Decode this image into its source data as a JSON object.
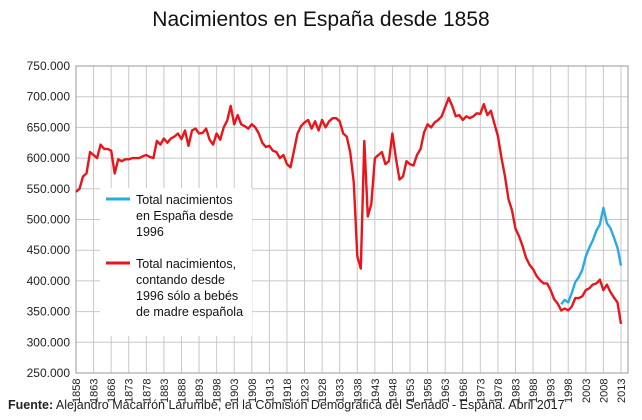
{
  "title": "Nacimientos en España desde 1858",
  "source": {
    "prefix": "Fuente:",
    "text": " Alejandro Macarrón Larumbe, en la Comisión Demográfica del Senado - España. Abril 2017"
  },
  "chart_data": {
    "type": "line",
    "title": "Nacimientos en España desde 1858",
    "xlim": [
      1858,
      2015
    ],
    "ylim": [
      250000,
      750000
    ],
    "grid": true,
    "legend_position": "center-left",
    "y_ticks": [
      {
        "value": 250000,
        "label": "250.000"
      },
      {
        "value": 300000,
        "label": "300.000"
      },
      {
        "value": 350000,
        "label": "350.000"
      },
      {
        "value": 400000,
        "label": "400.000"
      },
      {
        "value": 450000,
        "label": "450.000"
      },
      {
        "value": 500000,
        "label": "500.000"
      },
      {
        "value": 550000,
        "label": "550.000"
      },
      {
        "value": 600000,
        "label": "600.000"
      },
      {
        "value": 650000,
        "label": "650.000"
      },
      {
        "value": 700000,
        "label": "700.000"
      },
      {
        "value": 750000,
        "label": "750.000"
      }
    ],
    "x_ticks": [
      "1858",
      "1863",
      "1868",
      "1873",
      "1878",
      "1883",
      "1888",
      "1893",
      "1898",
      "1903",
      "1908",
      "1913",
      "1918",
      "1923",
      "1928",
      "1933",
      "1938",
      "1943",
      "1948",
      "1953",
      "1958",
      "1963",
      "1968",
      "1973",
      "1978",
      "1983",
      "1988",
      "1993",
      "1998",
      "2003",
      "2008",
      "2013"
    ],
    "series": [
      {
        "name": "Total nacimientos en España desde 1996",
        "color": "#29abe2",
        "legend_lines": [
          "Total nacimientos",
          "en España desde",
          "1996"
        ],
        "points": [
          [
            1996,
            362000
          ],
          [
            1997,
            369000
          ],
          [
            1998,
            365000
          ],
          [
            1999,
            380000
          ],
          [
            2000,
            398000
          ],
          [
            2001,
            406000
          ],
          [
            2002,
            418000
          ],
          [
            2003,
            440000
          ],
          [
            2004,
            454000
          ],
          [
            2005,
            466000
          ],
          [
            2006,
            482000
          ],
          [
            2007,
            492000
          ],
          [
            2008,
            519000
          ],
          [
            2009,
            494000
          ],
          [
            2010,
            486000
          ],
          [
            2011,
            471000
          ],
          [
            2012,
            454000
          ],
          [
            2013,
            425000
          ]
        ]
      },
      {
        "name": "Total nacimientos, contando desde 1996 sólo a bebés de madre española",
        "color": "#e8161b",
        "legend_lines": [
          "Total nacimientos,",
          "contando desde",
          "1996 sólo a bebés",
          "de madre española"
        ],
        "points": [
          [
            1858,
            545000
          ],
          [
            1859,
            550000
          ],
          [
            1860,
            570000
          ],
          [
            1861,
            575000
          ],
          [
            1862,
            610000
          ],
          [
            1863,
            605000
          ],
          [
            1864,
            600000
          ],
          [
            1865,
            622000
          ],
          [
            1866,
            615000
          ],
          [
            1867,
            615000
          ],
          [
            1868,
            612000
          ],
          [
            1869,
            575000
          ],
          [
            1870,
            598000
          ],
          [
            1871,
            595000
          ],
          [
            1872,
            598000
          ],
          [
            1873,
            598000
          ],
          [
            1874,
            600000
          ],
          [
            1875,
            600000
          ],
          [
            1876,
            600000
          ],
          [
            1877,
            603000
          ],
          [
            1878,
            605000
          ],
          [
            1879,
            602000
          ],
          [
            1880,
            600000
          ],
          [
            1881,
            628000
          ],
          [
            1882,
            622000
          ],
          [
            1883,
            632000
          ],
          [
            1884,
            625000
          ],
          [
            1885,
            632000
          ],
          [
            1886,
            635000
          ],
          [
            1887,
            640000
          ],
          [
            1888,
            631000
          ],
          [
            1889,
            645000
          ],
          [
            1890,
            620000
          ],
          [
            1891,
            645000
          ],
          [
            1892,
            648000
          ],
          [
            1893,
            640000
          ],
          [
            1894,
            641000
          ],
          [
            1895,
            648000
          ],
          [
            1896,
            630000
          ],
          [
            1897,
            622000
          ],
          [
            1898,
            640000
          ],
          [
            1899,
            630000
          ],
          [
            1900,
            650000
          ],
          [
            1901,
            661000
          ],
          [
            1902,
            685000
          ],
          [
            1903,
            655000
          ],
          [
            1904,
            670000
          ],
          [
            1905,
            655000
          ],
          [
            1906,
            652000
          ],
          [
            1907,
            648000
          ],
          [
            1908,
            655000
          ],
          [
            1909,
            650000
          ],
          [
            1910,
            640000
          ],
          [
            1911,
            625000
          ],
          [
            1912,
            618000
          ],
          [
            1913,
            620000
          ],
          [
            1914,
            612000
          ],
          [
            1915,
            610000
          ],
          [
            1916,
            600000
          ],
          [
            1917,
            605000
          ],
          [
            1918,
            590000
          ],
          [
            1919,
            585000
          ],
          [
            1920,
            612000
          ],
          [
            1921,
            640000
          ],
          [
            1922,
            652000
          ],
          [
            1923,
            658000
          ],
          [
            1924,
            662000
          ],
          [
            1925,
            648000
          ],
          [
            1926,
            660000
          ],
          [
            1927,
            645000
          ],
          [
            1928,
            662000
          ],
          [
            1929,
            650000
          ],
          [
            1930,
            660000
          ],
          [
            1931,
            665000
          ],
          [
            1932,
            665000
          ],
          [
            1933,
            660000
          ],
          [
            1934,
            640000
          ],
          [
            1935,
            635000
          ],
          [
            1936,
            610000
          ],
          [
            1937,
            560000
          ],
          [
            1938,
            440000
          ],
          [
            1939,
            420000
          ],
          [
            1940,
            628000
          ],
          [
            1941,
            505000
          ],
          [
            1942,
            525000
          ],
          [
            1943,
            600000
          ],
          [
            1944,
            605000
          ],
          [
            1945,
            610000
          ],
          [
            1946,
            590000
          ],
          [
            1947,
            595000
          ],
          [
            1948,
            640000
          ],
          [
            1949,
            600000
          ],
          [
            1950,
            565000
          ],
          [
            1951,
            570000
          ],
          [
            1952,
            595000
          ],
          [
            1953,
            590000
          ],
          [
            1954,
            588000
          ],
          [
            1955,
            605000
          ],
          [
            1956,
            615000
          ],
          [
            1957,
            642000
          ],
          [
            1958,
            655000
          ],
          [
            1959,
            650000
          ],
          [
            1960,
            658000
          ],
          [
            1961,
            662000
          ],
          [
            1962,
            668000
          ],
          [
            1963,
            683000
          ],
          [
            1964,
            698000
          ],
          [
            1965,
            685000
          ],
          [
            1966,
            668000
          ],
          [
            1967,
            670000
          ],
          [
            1968,
            662000
          ],
          [
            1969,
            668000
          ],
          [
            1970,
            665000
          ],
          [
            1971,
            668000
          ],
          [
            1972,
            673000
          ],
          [
            1973,
            672000
          ],
          [
            1974,
            688000
          ],
          [
            1975,
            670000
          ],
          [
            1976,
            677000
          ],
          [
            1977,
            656000
          ],
          [
            1978,
            636000
          ],
          [
            1979,
            601000
          ],
          [
            1980,
            571000
          ],
          [
            1981,
            533000
          ],
          [
            1982,
            515000
          ],
          [
            1983,
            485000
          ],
          [
            1984,
            473000
          ],
          [
            1985,
            457000
          ],
          [
            1986,
            438000
          ],
          [
            1987,
            426000
          ],
          [
            1988,
            419000
          ],
          [
            1989,
            408000
          ],
          [
            1990,
            401000
          ],
          [
            1991,
            396000
          ],
          [
            1992,
            396000
          ],
          [
            1993,
            385000
          ],
          [
            1994,
            370000
          ],
          [
            1995,
            363000
          ],
          [
            1996,
            352000
          ],
          [
            1997,
            355000
          ],
          [
            1998,
            352000
          ],
          [
            1999,
            358000
          ],
          [
            2000,
            372000
          ],
          [
            2001,
            372000
          ],
          [
            2002,
            375000
          ],
          [
            2003,
            385000
          ],
          [
            2004,
            388000
          ],
          [
            2005,
            394000
          ],
          [
            2006,
            396000
          ],
          [
            2007,
            402000
          ],
          [
            2008,
            385000
          ],
          [
            2009,
            394000
          ],
          [
            2010,
            382000
          ],
          [
            2011,
            373000
          ],
          [
            2012,
            365000
          ],
          [
            2013,
            330000
          ]
        ]
      }
    ]
  }
}
